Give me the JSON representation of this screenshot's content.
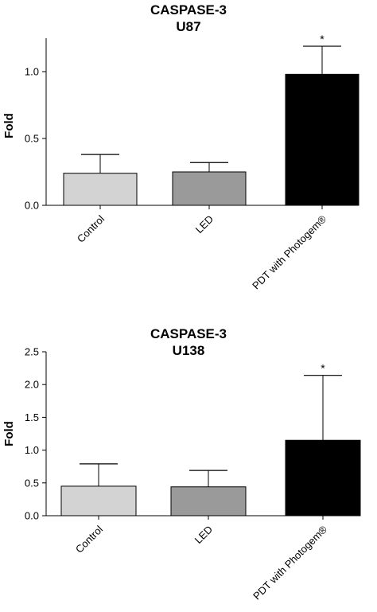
{
  "chart_data": [
    {
      "type": "bar",
      "title": "CASPASE-3",
      "subtitle": "U87",
      "ylabel": "Fold",
      "xlabel": "",
      "categories": [
        "Control",
        "LED",
        "PDT with Photogem®"
      ],
      "values": [
        0.24,
        0.25,
        0.98
      ],
      "errors": [
        0.14,
        0.07,
        0.21
      ],
      "significance": [
        "",
        "",
        "*"
      ],
      "colors": [
        "#d3d3d3",
        "#9a9a9a",
        "#000000"
      ],
      "ylim": [
        0,
        1.25
      ],
      "yticks": [
        0.0,
        0.5,
        1.0
      ],
      "yticklabels": [
        "0.0",
        "0.5",
        "1.0"
      ],
      "grid": false
    },
    {
      "type": "bar",
      "title": "CASPASE-3",
      "subtitle": "U138",
      "ylabel": "Fold",
      "xlabel": "",
      "categories": [
        "Control",
        "LED",
        "PDT with Photogem®"
      ],
      "values": [
        0.45,
        0.44,
        1.15
      ],
      "errors": [
        0.34,
        0.25,
        0.99
      ],
      "significance": [
        "",
        "",
        "*"
      ],
      "colors": [
        "#d3d3d3",
        "#9a9a9a",
        "#000000"
      ],
      "ylim": [
        0,
        2.5
      ],
      "yticks": [
        0.0,
        0.5,
        1.0,
        1.5,
        2.0,
        2.5
      ],
      "yticklabels": [
        "0.0",
        "0.5",
        "1.0",
        "1.5",
        "2.0",
        "2.5"
      ],
      "grid": false
    }
  ]
}
